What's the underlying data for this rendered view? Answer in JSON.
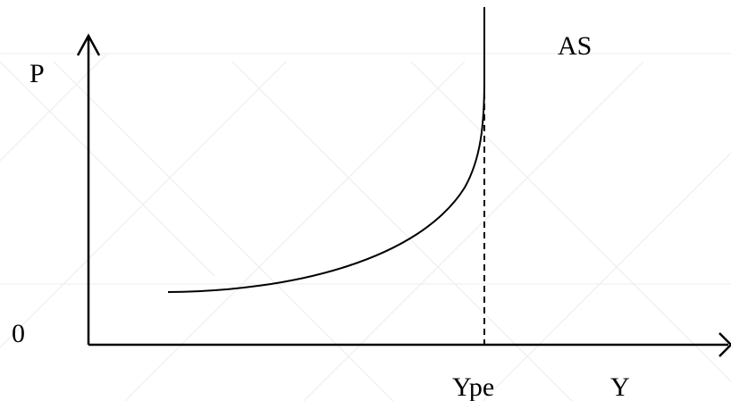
{
  "diagram": {
    "labels": {
      "y_axis": "P",
      "x_axis": "Y",
      "origin": "0",
      "curve": "AS",
      "potential_output": "Ype"
    },
    "colors": {
      "background": "#ffffff",
      "ink": "#000000",
      "watermark": "#ececec"
    }
  }
}
